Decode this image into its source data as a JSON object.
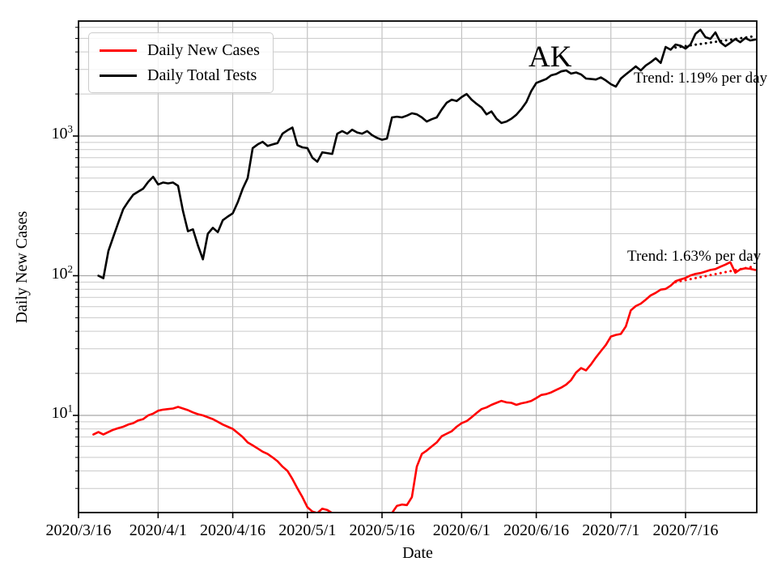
{
  "figure": {
    "state_title": "AK",
    "xlabel": "Date",
    "ylabel": "Daily New Cases",
    "background": "#ffffff"
  },
  "annotations": {
    "tests_trend": "Trend: 1.19% per day",
    "cases_trend": "Trend: 1.63% per day"
  },
  "legend": {
    "items": [
      {
        "label": "Daily New Cases",
        "color": "#ff0000"
      },
      {
        "label": "Daily Total Tests",
        "color": "#000000"
      }
    ]
  },
  "chart_data": {
    "type": "line",
    "title": "AK",
    "xlabel": "Date",
    "ylabel": "Daily New Cases",
    "y_scale": "log",
    "ylim": [
      2,
      6650
    ],
    "xlim_days": [
      0,
      136.3
    ],
    "x_origin_date": "2020/3/16",
    "grid": {
      "major": true,
      "minor": true,
      "major_color": "#a8a8a8",
      "minor_color": "#c9c9c9"
    },
    "legend_position": "upper left",
    "x_ticks": [
      {
        "label": "2020/3/16",
        "day": 0
      },
      {
        "label": "2020/4/1",
        "day": 16
      },
      {
        "label": "2020/4/16",
        "day": 31
      },
      {
        "label": "2020/5/1",
        "day": 46
      },
      {
        "label": "2020/5/16",
        "day": 61
      },
      {
        "label": "2020/6/1",
        "day": 77
      },
      {
        "label": "2020/6/16",
        "day": 92
      },
      {
        "label": "2020/7/1",
        "day": 107
      },
      {
        "label": "2020/7/16",
        "day": 122
      }
    ],
    "y_ticks": [
      {
        "base": "10",
        "exp": "1",
        "value": 10
      },
      {
        "base": "10",
        "exp": "2",
        "value": 100
      },
      {
        "base": "10",
        "exp": "3",
        "value": 1000
      }
    ],
    "y_minor_gridlines": [
      3,
      4,
      5,
      6,
      7,
      8,
      9,
      20,
      30,
      40,
      50,
      60,
      70,
      80,
      90,
      200,
      300,
      400,
      500,
      600,
      700,
      800,
      900,
      2000,
      3000,
      4000,
      5000,
      6000
    ],
    "series": [
      {
        "name": "Daily New Cases",
        "color": "#ff0000",
        "style": "solid",
        "points": [
          [
            3,
            7.3
          ],
          [
            4,
            7.6
          ],
          [
            5,
            7.3
          ],
          [
            6,
            7.6
          ],
          [
            7,
            7.9
          ],
          [
            8,
            8.1
          ],
          [
            9,
            8.3
          ],
          [
            10,
            8.6
          ],
          [
            11,
            8.8
          ],
          [
            12,
            9.2
          ],
          [
            13,
            9.4
          ],
          [
            14,
            10.0
          ],
          [
            15,
            10.3
          ],
          [
            16,
            10.8
          ],
          [
            17,
            11.0
          ],
          [
            18,
            11.1
          ],
          [
            19,
            11.2
          ],
          [
            20,
            11.5
          ],
          [
            21,
            11.2
          ],
          [
            22,
            10.9
          ],
          [
            23,
            10.5
          ],
          [
            24,
            10.2
          ],
          [
            25,
            10.0
          ],
          [
            26,
            9.7
          ],
          [
            27,
            9.4
          ],
          [
            28,
            9.0
          ],
          [
            29,
            8.6
          ],
          [
            30,
            8.3
          ],
          [
            31,
            8.0
          ],
          [
            32,
            7.5
          ],
          [
            33,
            7.0
          ],
          [
            34,
            6.4
          ],
          [
            35,
            6.1
          ],
          [
            36,
            5.8
          ],
          [
            37,
            5.5
          ],
          [
            38,
            5.3
          ],
          [
            39,
            5.0
          ],
          [
            40,
            4.7
          ],
          [
            41,
            4.3
          ],
          [
            42,
            4.0
          ],
          [
            43,
            3.5
          ],
          [
            44,
            3.0
          ],
          [
            45,
            2.6
          ],
          [
            46,
            2.2
          ],
          [
            47,
            2.05
          ],
          [
            48,
            2.0
          ],
          [
            49,
            2.15
          ],
          [
            50,
            2.1
          ],
          [
            51,
            2.0
          ],
          [
            52,
            2.0
          ],
          [
            53,
            1.85
          ],
          [
            54,
            1.7
          ],
          [
            55,
            1.6
          ],
          [
            56,
            1.55
          ],
          [
            57,
            1.5
          ],
          [
            58,
            1.5
          ],
          [
            59,
            1.55
          ],
          [
            60,
            1.6
          ],
          [
            61,
            1.7
          ],
          [
            62,
            1.85
          ],
          [
            63,
            2.0
          ],
          [
            64,
            2.25
          ],
          [
            65,
            2.3
          ],
          [
            66,
            2.28
          ],
          [
            67,
            2.6
          ],
          [
            68,
            4.3
          ],
          [
            69,
            5.3
          ],
          [
            70,
            5.6
          ],
          [
            71,
            6.0
          ],
          [
            72,
            6.4
          ],
          [
            73,
            7.1
          ],
          [
            74,
            7.4
          ],
          [
            75,
            7.7
          ],
          [
            76,
            8.3
          ],
          [
            77,
            8.8
          ],
          [
            78,
            9.1
          ],
          [
            79,
            9.7
          ],
          [
            80,
            10.4
          ],
          [
            81,
            11.1
          ],
          [
            82,
            11.4
          ],
          [
            83,
            11.9
          ],
          [
            84,
            12.3
          ],
          [
            85,
            12.7
          ],
          [
            86,
            12.4
          ],
          [
            87,
            12.3
          ],
          [
            88,
            11.9
          ],
          [
            89,
            12.2
          ],
          [
            90,
            12.4
          ],
          [
            91,
            12.7
          ],
          [
            92,
            13.3
          ],
          [
            93,
            14.0
          ],
          [
            94,
            14.2
          ],
          [
            95,
            14.6
          ],
          [
            96,
            15.2
          ],
          [
            97,
            15.8
          ],
          [
            98,
            16.6
          ],
          [
            99,
            17.9
          ],
          [
            100,
            20.3
          ],
          [
            101,
            21.8
          ],
          [
            102,
            21.0
          ],
          [
            103,
            23.2
          ],
          [
            104,
            26.0
          ],
          [
            105,
            28.9
          ],
          [
            106,
            32.0
          ],
          [
            107,
            36.7
          ],
          [
            108,
            37.7
          ],
          [
            109,
            38.3
          ],
          [
            110,
            43.3
          ],
          [
            111,
            56.5
          ],
          [
            112,
            60.6
          ],
          [
            113,
            63.1
          ],
          [
            114,
            67.4
          ],
          [
            115,
            72.3
          ],
          [
            116,
            75.4
          ],
          [
            117,
            79.5
          ],
          [
            118,
            80.5
          ],
          [
            119,
            84.9
          ],
          [
            120,
            91.5
          ],
          [
            121,
            94.0
          ],
          [
            122,
            96.5
          ],
          [
            123,
            100.4
          ],
          [
            124,
            103.0
          ],
          [
            125,
            104.5
          ],
          [
            126,
            107.0
          ],
          [
            127,
            110.0
          ],
          [
            128,
            111.5
          ],
          [
            129,
            116.0
          ],
          [
            130,
            120.0
          ],
          [
            131,
            125.0
          ],
          [
            132,
            105.0
          ],
          [
            133,
            111.0
          ],
          [
            134,
            113.0
          ],
          [
            135,
            112.0
          ],
          [
            136,
            110.0
          ]
        ]
      },
      {
        "name": "Daily Total Tests",
        "color": "#000000",
        "style": "solid",
        "points": [
          [
            4,
            100
          ],
          [
            5,
            96
          ],
          [
            6,
            150
          ],
          [
            7,
            190
          ],
          [
            8,
            240
          ],
          [
            9,
            300
          ],
          [
            10,
            340
          ],
          [
            11,
            380
          ],
          [
            12,
            400
          ],
          [
            13,
            420
          ],
          [
            14,
            470
          ],
          [
            15,
            510
          ],
          [
            16,
            450
          ],
          [
            17,
            465
          ],
          [
            18,
            458
          ],
          [
            19,
            465
          ],
          [
            20,
            440
          ],
          [
            21,
            290
          ],
          [
            22,
            208
          ],
          [
            23,
            215
          ],
          [
            24,
            165
          ],
          [
            25,
            131
          ],
          [
            26,
            200
          ],
          [
            27,
            220
          ],
          [
            28,
            205
          ],
          [
            29,
            250
          ],
          [
            30,
            265
          ],
          [
            31,
            280
          ],
          [
            32,
            335
          ],
          [
            33,
            420
          ],
          [
            34,
            500
          ],
          [
            35,
            820
          ],
          [
            36,
            870
          ],
          [
            37,
            910
          ],
          [
            38,
            850
          ],
          [
            39,
            870
          ],
          [
            40,
            890
          ],
          [
            41,
            1040
          ],
          [
            42,
            1100
          ],
          [
            43,
            1150
          ],
          [
            44,
            860
          ],
          [
            45,
            830
          ],
          [
            46,
            820
          ],
          [
            47,
            700
          ],
          [
            48,
            655
          ],
          [
            49,
            765
          ],
          [
            50,
            755
          ],
          [
            51,
            745
          ],
          [
            52,
            1040
          ],
          [
            53,
            1085
          ],
          [
            54,
            1040
          ],
          [
            55,
            1110
          ],
          [
            56,
            1060
          ],
          [
            57,
            1040
          ],
          [
            58,
            1085
          ],
          [
            59,
            1015
          ],
          [
            60,
            970
          ],
          [
            61,
            940
          ],
          [
            62,
            960
          ],
          [
            63,
            1360
          ],
          [
            64,
            1375
          ],
          [
            65,
            1360
          ],
          [
            66,
            1400
          ],
          [
            67,
            1455
          ],
          [
            68,
            1430
          ],
          [
            69,
            1360
          ],
          [
            70,
            1270
          ],
          [
            71,
            1320
          ],
          [
            72,
            1360
          ],
          [
            73,
            1550
          ],
          [
            74,
            1730
          ],
          [
            75,
            1820
          ],
          [
            76,
            1780
          ],
          [
            77,
            1900
          ],
          [
            78,
            2000
          ],
          [
            79,
            1820
          ],
          [
            80,
            1700
          ],
          [
            81,
            1600
          ],
          [
            82,
            1430
          ],
          [
            83,
            1500
          ],
          [
            84,
            1330
          ],
          [
            85,
            1240
          ],
          [
            86,
            1270
          ],
          [
            87,
            1330
          ],
          [
            88,
            1420
          ],
          [
            89,
            1560
          ],
          [
            90,
            1750
          ],
          [
            91,
            2100
          ],
          [
            92,
            2400
          ],
          [
            93,
            2480
          ],
          [
            94,
            2560
          ],
          [
            95,
            2720
          ],
          [
            96,
            2780
          ],
          [
            97,
            2900
          ],
          [
            98,
            2950
          ],
          [
            99,
            2800
          ],
          [
            100,
            2850
          ],
          [
            101,
            2760
          ],
          [
            102,
            2580
          ],
          [
            103,
            2560
          ],
          [
            104,
            2540
          ],
          [
            105,
            2630
          ],
          [
            106,
            2500
          ],
          [
            107,
            2350
          ],
          [
            108,
            2260
          ],
          [
            109,
            2580
          ],
          [
            110,
            2760
          ],
          [
            111,
            2950
          ],
          [
            112,
            3150
          ],
          [
            113,
            2950
          ],
          [
            114,
            3200
          ],
          [
            115,
            3380
          ],
          [
            116,
            3600
          ],
          [
            117,
            3340
          ],
          [
            118,
            4340
          ],
          [
            119,
            4150
          ],
          [
            120,
            4520
          ],
          [
            121,
            4430
          ],
          [
            122,
            4230
          ],
          [
            123,
            4520
          ],
          [
            124,
            5390
          ],
          [
            125,
            5760
          ],
          [
            126,
            5100
          ],
          [
            127,
            4960
          ],
          [
            128,
            5520
          ],
          [
            129,
            4700
          ],
          [
            130,
            4400
          ],
          [
            131,
            4650
          ],
          [
            132,
            4950
          ],
          [
            133,
            4700
          ],
          [
            134,
            5030
          ],
          [
            135,
            4830
          ],
          [
            136,
            4900
          ]
        ]
      },
      {
        "name": "Cases trend 1.63% per day",
        "color": "#ff0000",
        "style": "dotted",
        "points": [
          [
            120,
            90
          ],
          [
            136,
            117
          ]
        ]
      },
      {
        "name": "Tests trend 1.19% per day",
        "color": "#000000",
        "style": "dotted",
        "points": [
          [
            120,
            4300
          ],
          [
            136,
            5195
          ]
        ]
      }
    ]
  }
}
